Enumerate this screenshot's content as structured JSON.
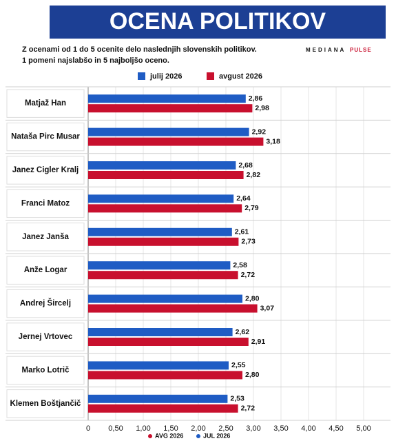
{
  "chart_data": {
    "type": "hbar",
    "title": "OCENA POLITIKOV",
    "subtitle": [
      "Z ocenami od 1 do 5 ocenite delo naslednjih slovenskih politikov.",
      "1 pomeni najslabšo in 5 najboljšo oceno."
    ],
    "logo": [
      "MEDIANA",
      "PULSE"
    ],
    "categories": [
      "Matjaž Han",
      "Nataša Pirc Musar",
      "Janez Cigler Kralj",
      "Franci Matoz",
      "Janez Janša",
      "Anže Logar",
      "Andrej Šircelj",
      "Jernej Vrtovec",
      "Marko Lotrič",
      "Klemen Boštjančič"
    ],
    "series": [
      {
        "name": "julij 2026",
        "color": "#1f5cc4",
        "values": [
          2.86,
          2.92,
          2.68,
          2.64,
          2.61,
          2.58,
          2.8,
          2.62,
          2.55,
          2.53
        ],
        "value_labels": [
          "2,86",
          "2,92",
          "2,68",
          "2,64",
          "2,61",
          "2,58",
          "2,80",
          "2,62",
          "2,55",
          "2,53"
        ]
      },
      {
        "name": "avgust 2026",
        "color": "#c8102e",
        "values": [
          2.98,
          3.18,
          2.82,
          2.79,
          2.73,
          2.72,
          3.07,
          2.91,
          2.8,
          2.72
        ],
        "value_labels": [
          "2,98",
          "3,18",
          "2,82",
          "2,79",
          "2,73",
          "2,72",
          "3,07",
          "2,91",
          "2,80",
          "2,72"
        ]
      }
    ],
    "bottom_legend": [
      "AVG 2026",
      "JUL 2026"
    ],
    "xlim": [
      0,
      5
    ],
    "xticks": [
      0,
      {
        "value": 0.5,
        "label": "0,50"
      },
      {
        "value": 1,
        "label": "1,00"
      },
      {
        "value": 1.5,
        "label": "1,50"
      },
      {
        "value": 2,
        "label": "2,00"
      },
      {
        "value": 2.5,
        "label": "2,50"
      },
      {
        "value": 3,
        "label": "3,00"
      },
      {
        "value": 3.5,
        "label": "3,50"
      },
      {
        "value": 4,
        "label": "4,00"
      },
      {
        "value": 4.5,
        "label": "4,50"
      },
      {
        "value": 5,
        "label": "5,00"
      }
    ],
    "grid": true
  }
}
